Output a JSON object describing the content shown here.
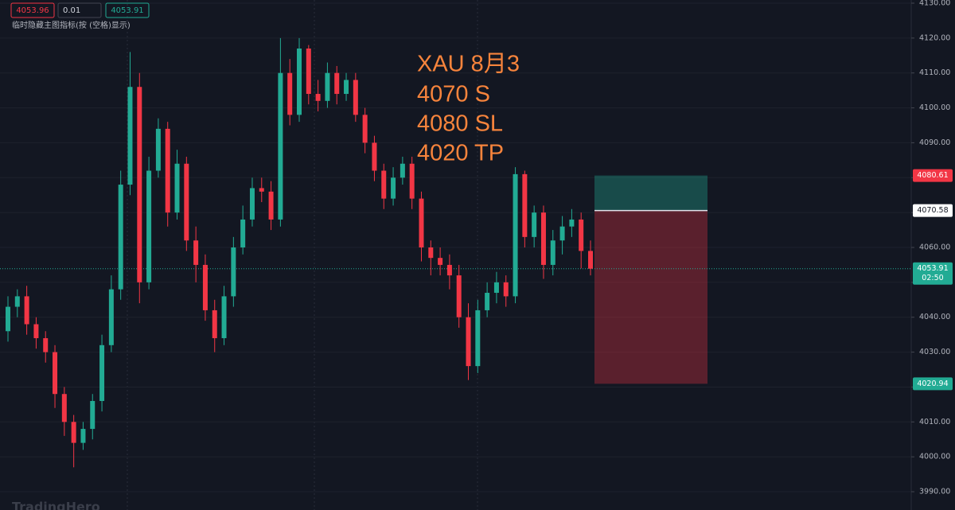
{
  "chart_data": {
    "type": "candlestick",
    "toolbar": {
      "sell": "4053.96",
      "qty": "0.01",
      "buy": "4053.91",
      "hint": "临时隐藏主图指标(按 (空格)显示)"
    },
    "annotation": [
      "XAU    8月3",
      "4070 S",
      "4080 SL",
      "4020 TP"
    ],
    "watermark": "TradingHero",
    "open": [
      4036,
      4043,
      4046,
      4038,
      4034,
      4030,
      4018,
      4010,
      4004,
      4008,
      4016,
      4032,
      4048,
      4078,
      4106,
      4050,
      4082,
      4094,
      4070,
      4084,
      4062,
      4055,
      4042,
      4034,
      4046,
      4060,
      4068,
      4077,
      4076,
      4068,
      4110,
      4098,
      4117,
      4104,
      4102,
      4110,
      4104,
      4108,
      4098,
      4090,
      4082,
      4074,
      4080,
      4084,
      4074,
      4060,
      4057,
      4055,
      4052,
      4040,
      4026,
      4042,
      4047,
      4050,
      4046,
      4081,
      4063,
      4070,
      4055,
      4062,
      4066,
      4068,
      4059
    ],
    "high": [
      4046,
      4048,
      4049,
      4040,
      4036,
      4032,
      4020,
      4012,
      4010,
      4018,
      4035,
      4052,
      4082,
      4116,
      4110,
      4086,
      4097,
      4096,
      4088,
      4086,
      4066,
      4058,
      4045,
      4049,
      4063,
      4072,
      4080,
      4080,
      4079,
      4120,
      4114,
      4120,
      4118,
      4108,
      4113,
      4112,
      4110,
      4110,
      4100,
      4092,
      4084,
      4083,
      4086,
      4086,
      4076,
      4062,
      4060,
      4058,
      4055,
      4044,
      4045,
      4050,
      4053,
      4052,
      4083,
      4082,
      4072,
      4072,
      4065,
      4069,
      4071,
      4070,
      4062
    ],
    "low": [
      4033,
      4040,
      4035,
      4031,
      4027,
      4014,
      4006,
      3997,
      4002,
      4005,
      4013,
      4030,
      4045,
      4075,
      4044,
      4048,
      4080,
      4066,
      4068,
      4059,
      4050,
      4039,
      4030,
      4032,
      4043,
      4058,
      4066,
      4073,
      4065,
      4066,
      4095,
      4096,
      4101,
      4099,
      4100,
      4101,
      4102,
      4096,
      4087,
      4079,
      4071,
      4072,
      4078,
      4071,
      4056,
      4052,
      4052,
      4048,
      4037,
      4022,
      4024,
      4040,
      4044,
      4043,
      4044,
      4060,
      4060,
      4051,
      4052,
      4058,
      4063,
      4054,
      4052
    ],
    "close": [
      4043,
      4046,
      4038,
      4034,
      4030,
      4018,
      4010,
      4004,
      4008,
      4016,
      4032,
      4048,
      4078,
      4106,
      4050,
      4082,
      4094,
      4070,
      4084,
      4062,
      4055,
      4042,
      4034,
      4046,
      4060,
      4068,
      4077,
      4076,
      4068,
      4110,
      4098,
      4117,
      4104,
      4102,
      4110,
      4104,
      4108,
      4098,
      4090,
      4082,
      4074,
      4080,
      4084,
      4074,
      4060,
      4057,
      4055,
      4052,
      4040,
      4026,
      4042,
      4047,
      4050,
      4046,
      4081,
      4063,
      4070,
      4055,
      4062,
      4066,
      4068,
      4059,
      4053.91
    ],
    "up_color": "#22ab94",
    "down_color": "#f23645",
    "ylim": [
      3984.76,
      4130.91
    ],
    "yticks": [
      {
        "value": 3990,
        "label": "3990.00"
      },
      {
        "value": 4000,
        "label": "4000.00"
      },
      {
        "value": 4010,
        "label": "4010.00"
      },
      {
        "value": 4020,
        "label": "4020.00"
      },
      {
        "value": 4030,
        "label": "4030.00"
      },
      {
        "value": 4040,
        "label": "4040.00"
      },
      {
        "value": 4050,
        "label": "4050.00"
      },
      {
        "value": 4060,
        "label": "4060.00"
      },
      {
        "value": 4070,
        "label": "4070.00"
      },
      {
        "value": 4080,
        "label": "4080.00"
      },
      {
        "value": 4090,
        "label": "4090.00"
      },
      {
        "value": 4100,
        "label": "4100.00"
      },
      {
        "value": 4110,
        "label": "4110.00"
      },
      {
        "value": 4120,
        "label": "4120.00"
      },
      {
        "value": 4130,
        "label": "4130.00"
      }
    ],
    "grid": true,
    "position": {
      "stop": 4080.61,
      "entry": 4070.58,
      "target": 4020.94
    },
    "last_price": 4053.91,
    "countdown": "02:50"
  }
}
